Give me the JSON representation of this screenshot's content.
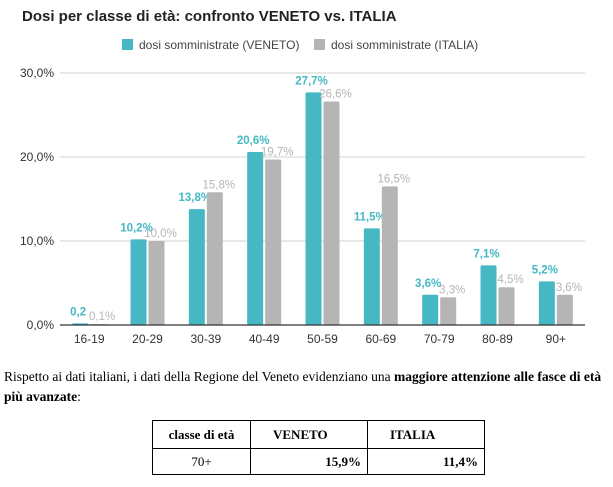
{
  "chart_data": {
    "type": "bar",
    "title": "Dosi per classe di età: confronto VENETO vs. ITALIA",
    "categories": [
      "16-19",
      "20-29",
      "30-39",
      "40-49",
      "50-59",
      "60-69",
      "70-79",
      "80-89",
      "90+"
    ],
    "series": [
      {
        "name": "dosi somministrate (VENETO)",
        "color": "#45b8c4",
        "values": [
          0.2,
          10.2,
          13.8,
          20.6,
          27.7,
          11.5,
          3.6,
          7.1,
          5.2
        ],
        "labels": [
          "0,2",
          "10,2%",
          "13,8%",
          "20,6%",
          "27,7%",
          "11,5%",
          "3,6%",
          "7,1%",
          "5,2%"
        ]
      },
      {
        "name": "dosi somministrate (ITALIA)",
        "color": "#b5b5b5",
        "values": [
          0.1,
          10.0,
          15.8,
          19.7,
          26.6,
          16.5,
          3.3,
          4.5,
          3.6
        ],
        "labels": [
          "0,1%",
          "10,0%",
          "15,8%",
          "19,7%",
          "26,6%",
          "16,5%",
          "3,3%",
          "4,5%",
          "3,6%"
        ]
      }
    ],
    "yticks": [
      "0,0%",
      "10,0%",
      "20,0%",
      "30,0%"
    ],
    "ytick_values": [
      0,
      10,
      20,
      30
    ],
    "ylim": [
      0,
      30
    ],
    "legend": "top-center",
    "grid": true
  },
  "text": {
    "before": "Rispetto ai dati italiani, i dati della Regione del Veneto evidenziano una ",
    "bold": "maggiore attenzione alle fasce di età più avanzate",
    "after": ":"
  },
  "table": {
    "headers": [
      "classe di età",
      "VENETO",
      "ITALIA"
    ],
    "row": [
      "70+",
      "15,9%",
      "11,4%"
    ]
  }
}
